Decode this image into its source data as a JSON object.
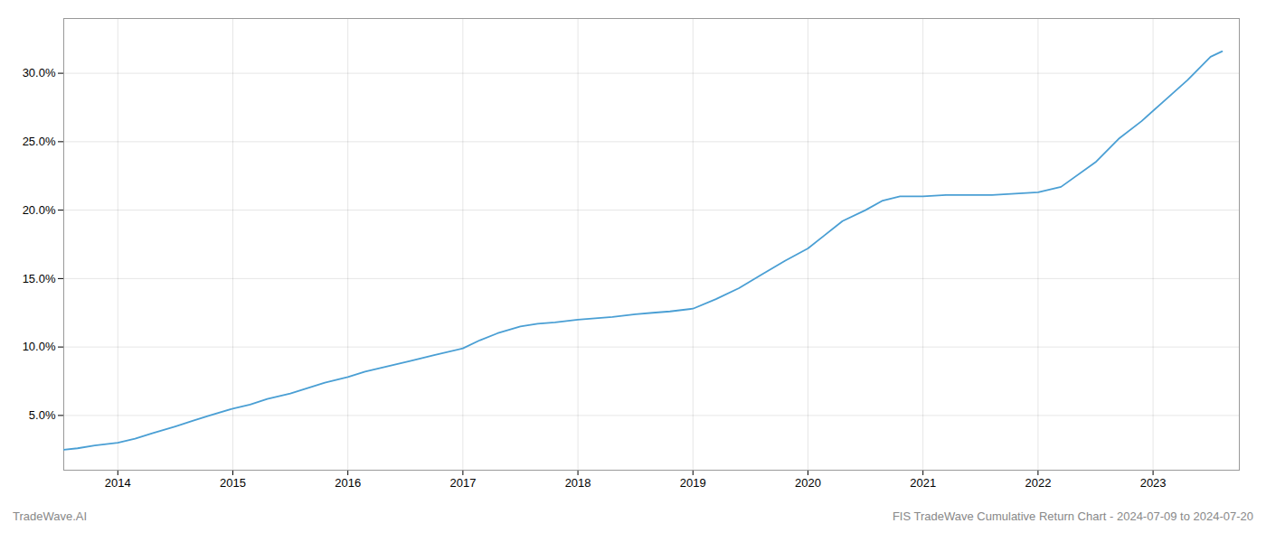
{
  "chart_data": {
    "type": "line",
    "x": [
      2013.53,
      2013.65,
      2013.8,
      2014.0,
      2014.15,
      2014.3,
      2014.5,
      2014.65,
      2014.8,
      2015.0,
      2015.15,
      2015.3,
      2015.5,
      2015.65,
      2015.8,
      2016.0,
      2016.15,
      2016.35,
      2016.55,
      2016.75,
      2017.0,
      2017.15,
      2017.3,
      2017.5,
      2017.65,
      2017.8,
      2018.0,
      2018.15,
      2018.3,
      2018.5,
      2018.65,
      2018.8,
      2019.0,
      2019.2,
      2019.4,
      2019.6,
      2019.8,
      2020.0,
      2020.15,
      2020.3,
      2020.5,
      2020.65,
      2020.8,
      2021.0,
      2021.2,
      2021.4,
      2021.6,
      2021.8,
      2022.0,
      2022.2,
      2022.5,
      2022.7,
      2022.9,
      2023.1,
      2023.3,
      2023.5,
      2023.6
    ],
    "values": [
      2.5,
      2.6,
      2.8,
      3.0,
      3.3,
      3.7,
      4.2,
      4.6,
      5.0,
      5.5,
      5.8,
      6.2,
      6.6,
      7.0,
      7.4,
      7.8,
      8.2,
      8.6,
      9.0,
      9.4,
      9.9,
      10.5,
      11.0,
      11.5,
      11.7,
      11.8,
      12.0,
      12.1,
      12.2,
      12.4,
      12.5,
      12.6,
      12.8,
      13.5,
      14.3,
      15.3,
      16.3,
      17.2,
      18.2,
      19.2,
      20.0,
      20.7,
      21.0,
      21.0,
      21.1,
      21.1,
      21.1,
      21.2,
      21.3,
      21.7,
      23.5,
      25.2,
      26.5,
      28.0,
      29.5,
      31.2,
      31.6
    ],
    "color": "#4a9fd4",
    "xlim": [
      2013.53,
      2023.75
    ],
    "ylim": [
      1.0,
      34.0
    ],
    "xticks": [
      2014,
      2015,
      2016,
      2017,
      2018,
      2019,
      2020,
      2021,
      2022,
      2023
    ],
    "yticks": [
      {
        "value": 5.0,
        "label": "5.0%"
      },
      {
        "value": 10.0,
        "label": "10.0%"
      },
      {
        "value": 15.0,
        "label": "15.0%"
      },
      {
        "value": 20.0,
        "label": "20.0%"
      },
      {
        "value": 25.0,
        "label": "25.0%"
      },
      {
        "value": 30.0,
        "label": "30.0%"
      }
    ],
    "grid": true,
    "annotations": [
      "TradeWave.AI",
      "FIS TradeWave Cumulative Return Chart - 2024-07-09 to 2024-07-20"
    ]
  }
}
